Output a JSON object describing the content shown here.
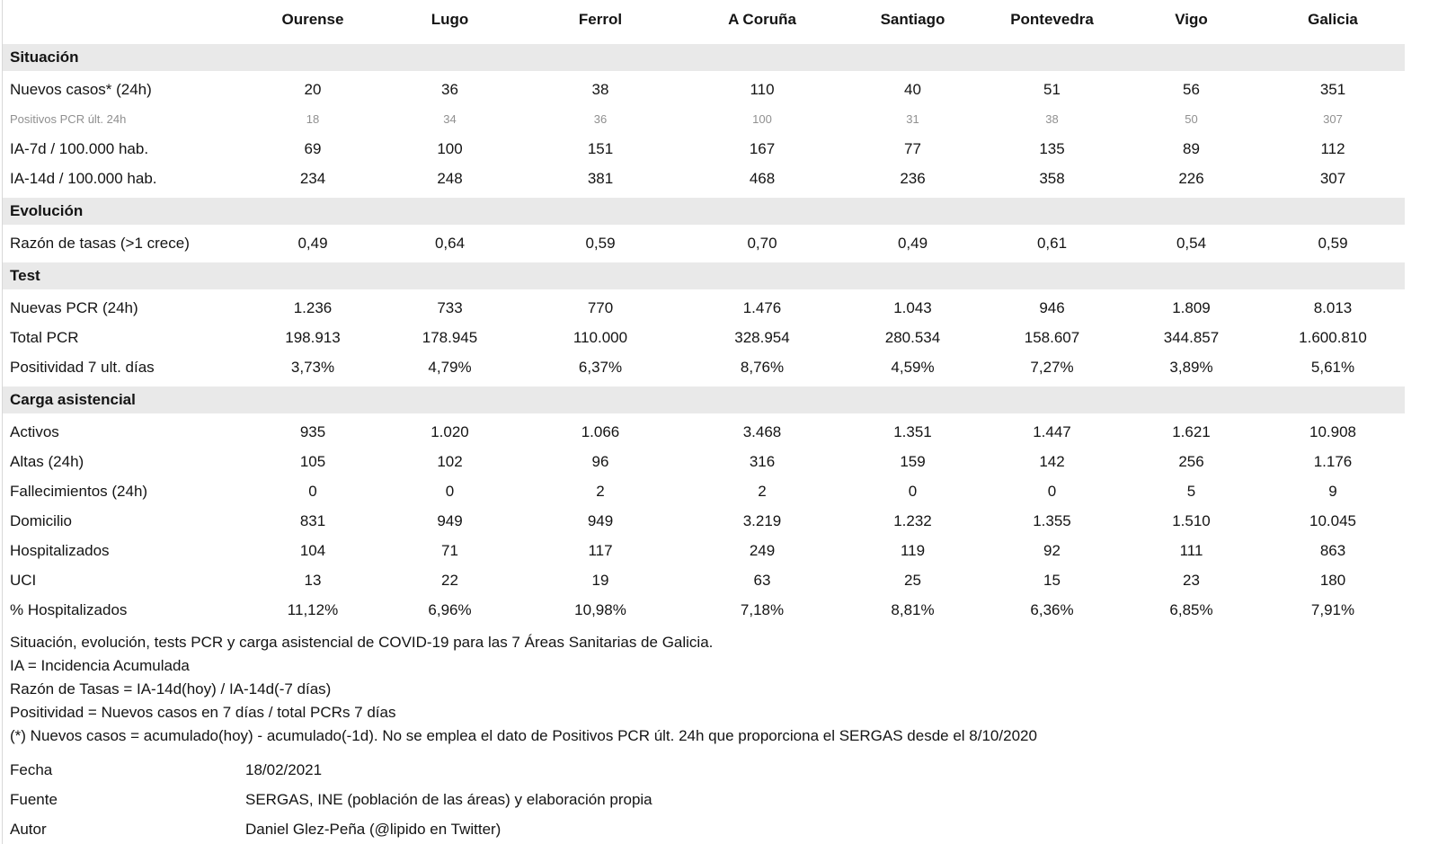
{
  "chart_data": {
    "type": "table",
    "title": "Situación, evolución, tests PCR y carga asistencial de COVID-19 para las 7 Áreas Sanitarias de Galicia",
    "columns": [
      "",
      "Ourense",
      "Lugo",
      "Ferrol",
      "A Coruña",
      "Santiago",
      "Pontevedra",
      "Vigo",
      "Galicia"
    ],
    "sections": [
      {
        "title": "Situación",
        "rows": [
          {
            "label": "Nuevos casos* (24h)",
            "muted": false,
            "values": [
              "20",
              "36",
              "38",
              "110",
              "40",
              "51",
              "56",
              "351"
            ]
          },
          {
            "label": "Positivos PCR últ. 24h",
            "muted": true,
            "values": [
              "18",
              "34",
              "36",
              "100",
              "31",
              "38",
              "50",
              "307"
            ]
          },
          {
            "label": "IA-7d / 100.000 hab.",
            "muted": false,
            "values": [
              "69",
              "100",
              "151",
              "167",
              "77",
              "135",
              "89",
              "112"
            ]
          },
          {
            "label": "IA-14d / 100.000 hab.",
            "muted": false,
            "values": [
              "234",
              "248",
              "381",
              "468",
              "236",
              "358",
              "226",
              "307"
            ]
          }
        ]
      },
      {
        "title": "Evolución",
        "rows": [
          {
            "label": "Razón de tasas (>1 crece)",
            "muted": false,
            "values": [
              "0,49",
              "0,64",
              "0,59",
              "0,70",
              "0,49",
              "0,61",
              "0,54",
              "0,59"
            ]
          }
        ]
      },
      {
        "title": "Test",
        "rows": [
          {
            "label": "Nuevas PCR (24h)",
            "muted": false,
            "values": [
              "1.236",
              "733",
              "770",
              "1.476",
              "1.043",
              "946",
              "1.809",
              "8.013"
            ]
          },
          {
            "label": "Total PCR",
            "muted": false,
            "values": [
              "198.913",
              "178.945",
              "110.000",
              "328.954",
              "280.534",
              "158.607",
              "344.857",
              "1.600.810"
            ]
          },
          {
            "label": "Positividad 7 ult. días",
            "muted": false,
            "values": [
              "3,73%",
              "4,79%",
              "6,37%",
              "8,76%",
              "4,59%",
              "7,27%",
              "3,89%",
              "5,61%"
            ]
          }
        ]
      },
      {
        "title": "Carga asistencial",
        "rows": [
          {
            "label": "Activos",
            "muted": false,
            "values": [
              "935",
              "1.020",
              "1.066",
              "3.468",
              "1.351",
              "1.447",
              "1.621",
              "10.908"
            ]
          },
          {
            "label": "Altas (24h)",
            "muted": false,
            "values": [
              "105",
              "102",
              "96",
              "316",
              "159",
              "142",
              "256",
              "1.176"
            ]
          },
          {
            "label": "Fallecimientos (24h)",
            "muted": false,
            "values": [
              "0",
              "0",
              "2",
              "2",
              "0",
              "0",
              "5",
              "9"
            ]
          },
          {
            "label": "Domicilio",
            "muted": false,
            "values": [
              "831",
              "949",
              "949",
              "3.219",
              "1.232",
              "1.355",
              "1.510",
              "10.045"
            ]
          },
          {
            "label": "Hospitalizados",
            "muted": false,
            "values": [
              "104",
              "71",
              "117",
              "249",
              "119",
              "92",
              "111",
              "863"
            ]
          },
          {
            "label": "UCI",
            "muted": false,
            "values": [
              "13",
              "22",
              "19",
              "63",
              "25",
              "15",
              "23",
              "180"
            ]
          },
          {
            "label": "% Hospitalizados",
            "muted": false,
            "values": [
              "11,12%",
              "6,96%",
              "10,98%",
              "7,18%",
              "8,81%",
              "6,36%",
              "6,85%",
              "7,91%"
            ]
          }
        ]
      }
    ]
  },
  "notes": {
    "caption": "Situación, evolución, tests PCR y carga asistencial de COVID-19 para las 7 Áreas Sanitarias de Galicia.",
    "lines": [
      "IA = Incidencia Acumulada",
      "Razón de Tasas = IA-14d(hoy) / IA-14d(-7 días)",
      "Positividad = Nuevos casos en 7 días / total PCRs 7 días",
      "(*) Nuevos casos = acumulado(hoy) - acumulado(-1d). No se emplea el dato de Positivos PCR últ. 24h que proporciona el SERGAS desde el 8/10/2020"
    ]
  },
  "meta": {
    "fecha_label": "Fecha",
    "fecha_value": "18/02/2021",
    "fuente_label": "Fuente",
    "fuente_value": "SERGAS, INE (población de las áreas) y elaboración propia",
    "autor_label": "Autor",
    "autor_value": "Daniel Glez-Peña (@lipido en Twitter)"
  },
  "colors": {
    "section_bg": "#e9e9e9",
    "muted_text": "#909090",
    "text": "#141414",
    "border_left": "#d8d8d8"
  }
}
